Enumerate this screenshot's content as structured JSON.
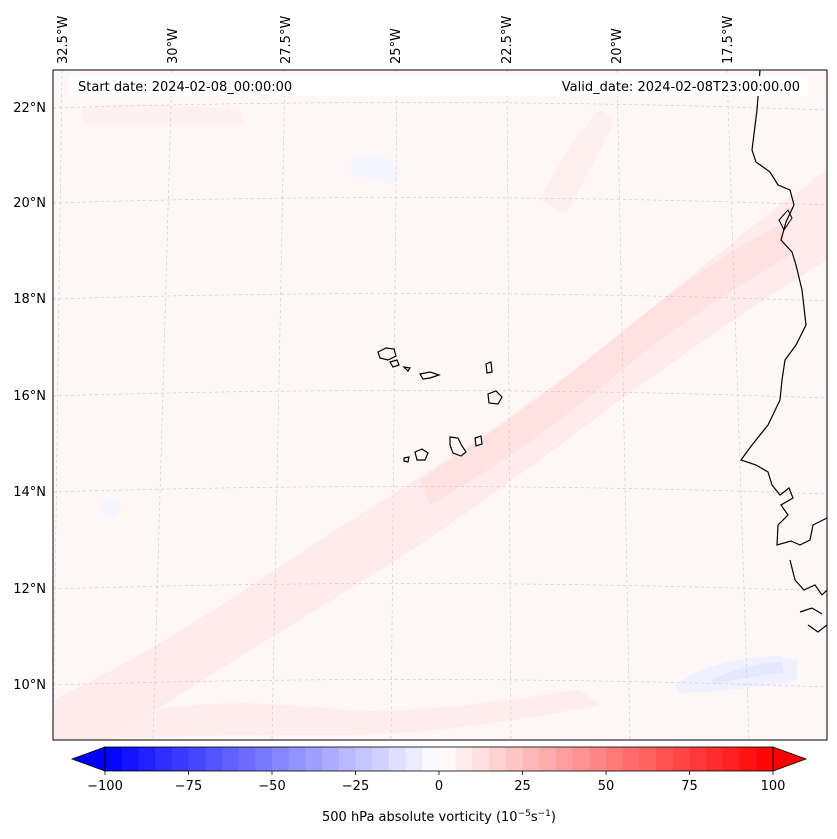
{
  "map": {
    "start_date": "Start date: 2024-02-08_00:00:00",
    "valid_date": "Valid_date: 2024-02-08T23:00:00.00",
    "lat_labels": [
      "22°N",
      "20°N",
      "18°N",
      "16°N",
      "14°N",
      "12°N",
      "10°N"
    ],
    "lon_labels": [
      "32.5°W",
      "30°W",
      "27.5°W",
      "25°W",
      "22.5°W",
      "20°W",
      "17.5°W"
    ],
    "gridlines": true,
    "features": [
      "Cape Verde islands",
      "West African coastline"
    ]
  },
  "colorbar": {
    "label_main": "500 hPa absolute vorticity (10",
    "label_exp1": "−5",
    "label_mid": "s",
    "label_exp2": "−1",
    "label_end": ")",
    "ticks": [
      "−100",
      "−75",
      "−50",
      "−25",
      "0",
      "25",
      "50",
      "75",
      "100"
    ],
    "range": [
      -100,
      100
    ],
    "levels": 40,
    "colormap": "bwr",
    "extend": "both",
    "colors": {
      "negative": "#0000ff",
      "neutral": "#ffffff",
      "positive": "#ff0000"
    }
  }
}
